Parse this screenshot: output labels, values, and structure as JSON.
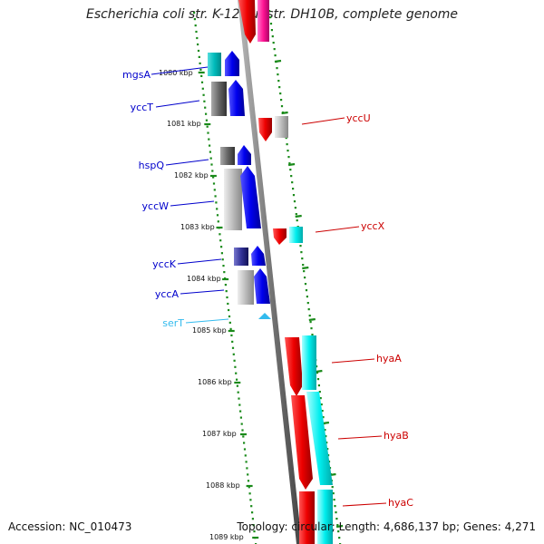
{
  "title": "Escherichia coli str. K-12 substr. DH10B, complete genome",
  "footer": {
    "accession": "Accession: NC_010473",
    "summary": "Topology: circular; Length: 4,686,137 bp; Genes: 4,271"
  },
  "map": {
    "ruler_labels": [
      "1080 kbp",
      "1081 kbp",
      "1082 kbp",
      "1083 kbp",
      "1084 kbp",
      "1085 kbp",
      "1086 kbp",
      "1087 kbp",
      "1088 kbp",
      "1089 kbp"
    ],
    "left_genes": [
      {
        "name": "mgsA",
        "color": "#0000cc"
      },
      {
        "name": "yccT",
        "color": "#0000cc"
      },
      {
        "name": "hspQ",
        "color": "#0000cc"
      },
      {
        "name": "yccW",
        "color": "#0000cc"
      },
      {
        "name": "yccK",
        "color": "#0000cc"
      },
      {
        "name": "yccA",
        "color": "#0000cc"
      },
      {
        "name": "serT",
        "color": "#33bbee"
      }
    ],
    "right_genes": [
      {
        "name": "yccU",
        "color": "#cc0000"
      },
      {
        "name": "yccX",
        "color": "#cc0000"
      },
      {
        "name": "hyaA",
        "color": "#cc0000"
      },
      {
        "name": "hyaB",
        "color": "#cc0000"
      },
      {
        "name": "hyaC",
        "color": "#cc0000"
      }
    ],
    "colors": {
      "forward_cds": "#0000ee",
      "reverse_cds": "#ee0000",
      "forward_cog": "#777777",
      "reverse_cog": "#00eeee",
      "backbone": "#888888",
      "ruler_dots": "#1a8a1a",
      "pink": "#ff1493",
      "trna": "#33bbee"
    }
  }
}
